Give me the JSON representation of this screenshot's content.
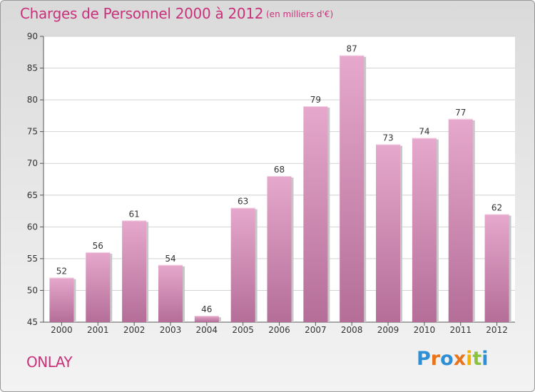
{
  "header": {
    "title": "Charges de Personnel 2000 à 2012",
    "unit": "(en milliers d'€)"
  },
  "footer": {
    "commune": "ONLAY",
    "logo_text": "Proxiti"
  },
  "colors": {
    "accent": "#c8327a",
    "bar_top": "#e6a8cc",
    "bar_bottom": "#b46e98",
    "logo_letters": [
      "#2d8fd6",
      "#e8741c",
      "#2d8fd6",
      "#e8741c",
      "#f0b400",
      "#8ac43c",
      "#2d8fd6"
    ]
  },
  "chart_data": {
    "type": "bar",
    "title": "Charges de Personnel 2000 à 2012",
    "subtitle": "(en milliers d'€)",
    "categories": [
      "2000",
      "2001",
      "2002",
      "2003",
      "2004",
      "2005",
      "2006",
      "2007",
      "2008",
      "2009",
      "2010",
      "2011",
      "2012"
    ],
    "values": [
      52,
      56,
      61,
      54,
      46,
      63,
      68,
      79,
      87,
      73,
      74,
      77,
      62
    ],
    "ylim": [
      45,
      90
    ],
    "yticks": [
      45,
      50,
      55,
      60,
      65,
      70,
      75,
      80,
      85,
      90
    ],
    "grid": true,
    "legend": "none"
  }
}
